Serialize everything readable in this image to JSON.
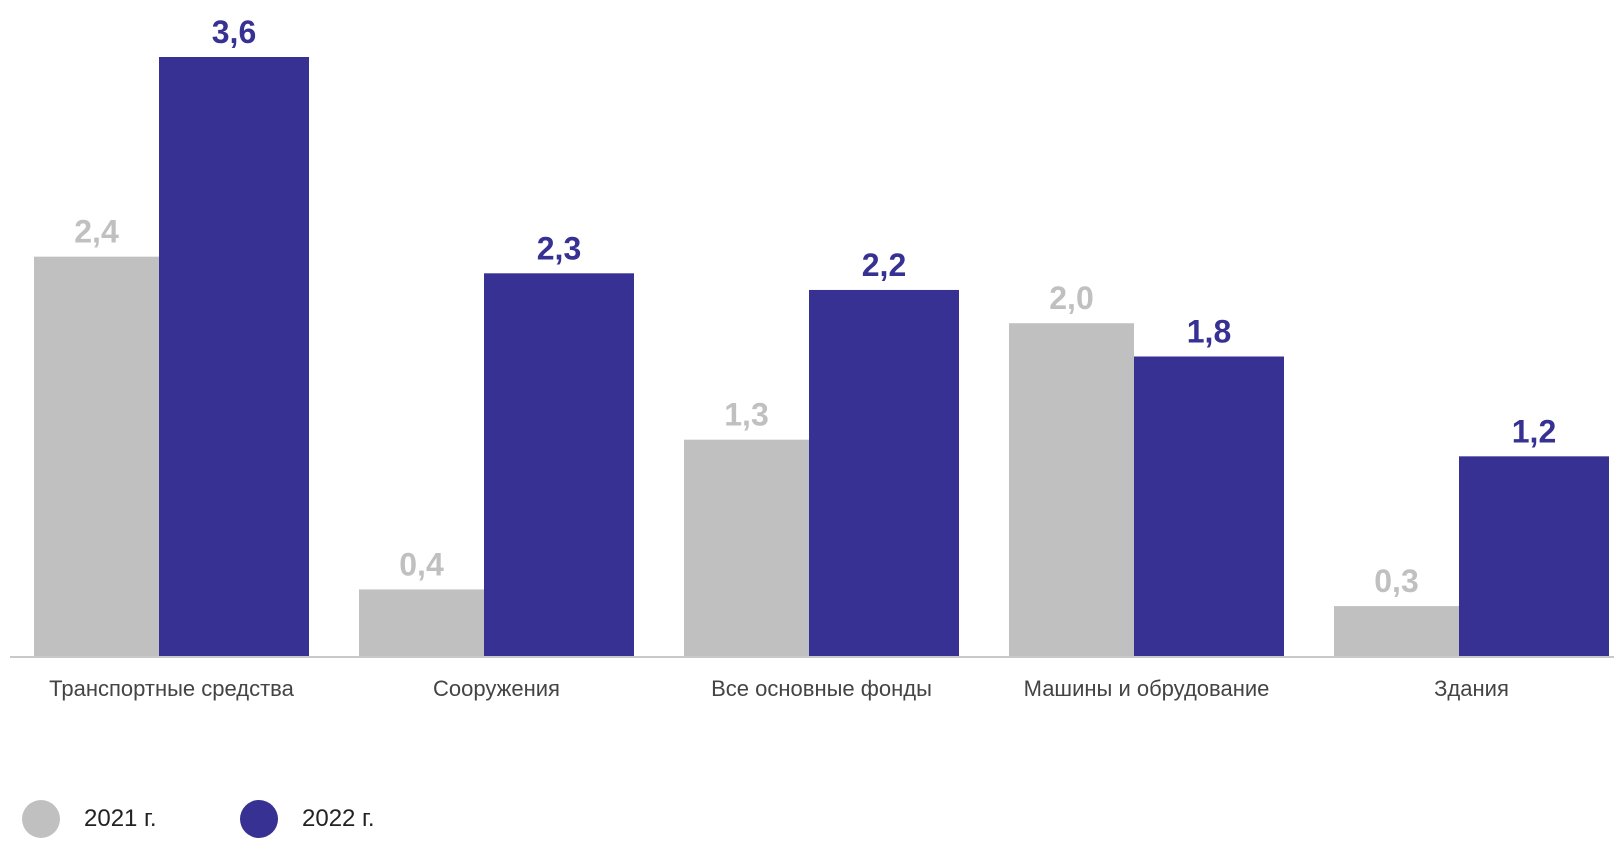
{
  "chart_data": {
    "type": "bar",
    "categories": [
      "Транспортные средства",
      "Сооружения",
      "Все основные фонды",
      "Машины и обрудование",
      "Здания"
    ],
    "series": [
      {
        "name": "2021 г.",
        "color": "#c0c0c0",
        "values": [
          2.4,
          0.4,
          1.3,
          2.0,
          0.3
        ],
        "labels": [
          "2,4",
          "0,4",
          "1,3",
          "2,0",
          "0,3"
        ]
      },
      {
        "name": "2022 г.",
        "color": "#363193",
        "values": [
          3.6,
          2.3,
          2.2,
          1.8,
          1.2
        ],
        "labels": [
          "3,6",
          "2,3",
          "2,2",
          "1,8",
          "1,2"
        ]
      }
    ],
    "ylim": [
      0,
      3.6
    ],
    "grid": false,
    "legend_position": "bottom-left",
    "axis_color": "#c8c8c8"
  }
}
